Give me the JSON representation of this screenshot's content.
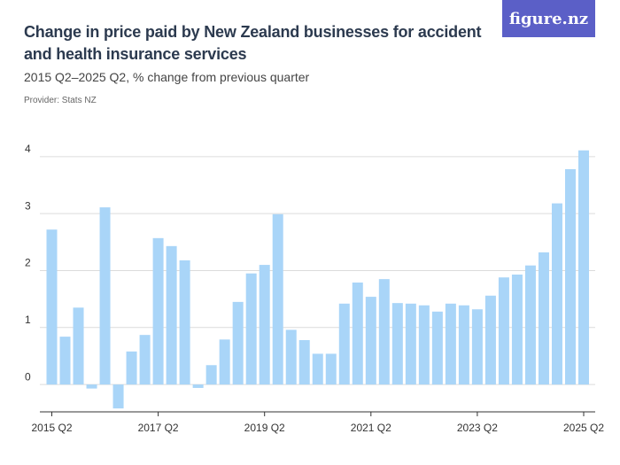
{
  "brand": "figure.nz",
  "chart_data": {
    "type": "bar",
    "title": "Change in price paid by New Zealand businesses for accident and health insurance services",
    "subtitle": "2015 Q2–2025 Q2, % change from previous quarter",
    "provider": "Provider: Stats NZ",
    "categories": [
      "2015 Q2",
      null,
      null,
      null,
      null,
      null,
      null,
      null,
      "2017 Q2",
      null,
      null,
      null,
      null,
      null,
      null,
      null,
      "2019 Q2",
      null,
      null,
      null,
      null,
      null,
      null,
      null,
      "2021 Q2",
      null,
      null,
      null,
      null,
      null,
      null,
      null,
      "2023 Q2",
      null,
      null,
      null,
      null,
      null,
      null,
      null,
      "2025 Q2"
    ],
    "values": [
      2.72,
      0.84,
      1.35,
      -0.07,
      3.11,
      -0.42,
      0.58,
      0.87,
      2.57,
      2.43,
      2.18,
      -0.06,
      0.34,
      0.79,
      1.45,
      1.95,
      2.1,
      2.99,
      0.96,
      0.78,
      0.54,
      0.54,
      1.42,
      1.79,
      1.54,
      1.85,
      1.43,
      1.42,
      1.39,
      1.28,
      1.42,
      1.39,
      1.32,
      1.56,
      1.88,
      1.93,
      2.09,
      2.32,
      3.18,
      3.78,
      4.11
    ],
    "color": "#a9d5f8",
    "ylim": [
      -0.48,
      4.2
    ],
    "yticks": [
      0,
      1,
      2,
      3,
      4
    ],
    "grid": true
  }
}
